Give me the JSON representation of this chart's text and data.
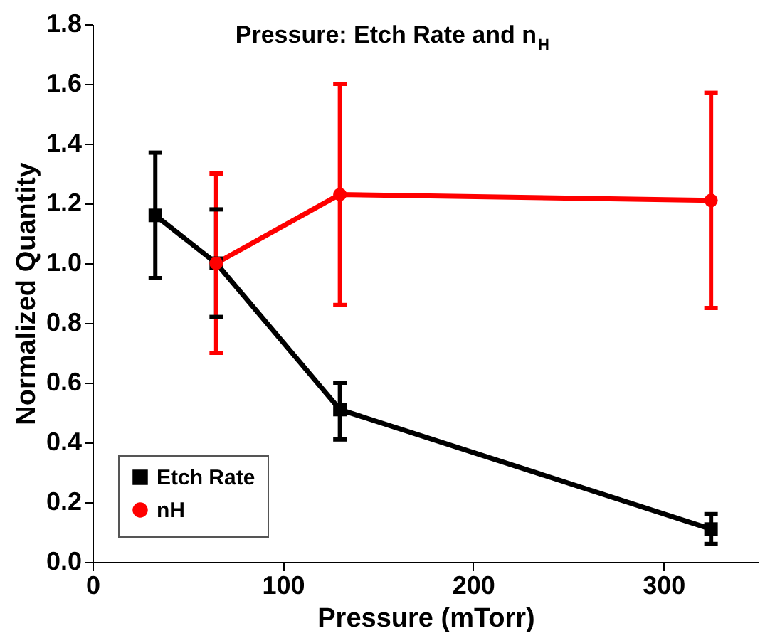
{
  "chart_data": {
    "type": "line",
    "title": "Pressure: Etch Rate and n$_{H}$",
    "xlabel": "Pressure (mTorr)",
    "ylabel": "Normalized Quantity",
    "xlim": [
      0,
      350
    ],
    "xticks": [
      0,
      100,
      200,
      300
    ],
    "ylim": [
      0,
      1.8
    ],
    "yticks": [
      {
        "value": 0,
        "label": "0.0"
      },
      {
        "value": 0.2,
        "label": "0.2"
      },
      {
        "value": 0.4,
        "label": "0.4"
      },
      {
        "value": 0.6,
        "label": "0.6"
      },
      {
        "value": 0.8,
        "label": "0.8"
      },
      {
        "value": 1.0,
        "label": "1.0"
      },
      {
        "value": 1.2,
        "label": "1.2"
      },
      {
        "value": 1.4,
        "label": "1.4"
      },
      {
        "value": 1.6,
        "label": "1.6"
      },
      {
        "value": 1.8,
        "label": "1.8"
      }
    ],
    "grid": false,
    "legend": "bottom left",
    "line_style": "solid",
    "series": [
      {
        "name": "Etch Rate",
        "color": "#000000",
        "marker": "square",
        "x": [
          33,
          65,
          130,
          325
        ],
        "values": [
          1.16,
          1.0,
          0.51,
          0.11
        ],
        "errors": [
          [
            0.95,
            1.37
          ],
          [
            0.82,
            1.18
          ],
          [
            0.41,
            0.6
          ],
          [
            0.06,
            0.16
          ]
        ]
      },
      {
        "name": "nH",
        "color": "#ff0000",
        "marker": "circle",
        "x": [
          65,
          130,
          325
        ],
        "values": [
          1.0,
          1.23,
          1.21
        ],
        "errors": [
          [
            0.7,
            1.3
          ],
          [
            0.86,
            1.6
          ],
          [
            0.85,
            1.57
          ]
        ]
      }
    ]
  }
}
